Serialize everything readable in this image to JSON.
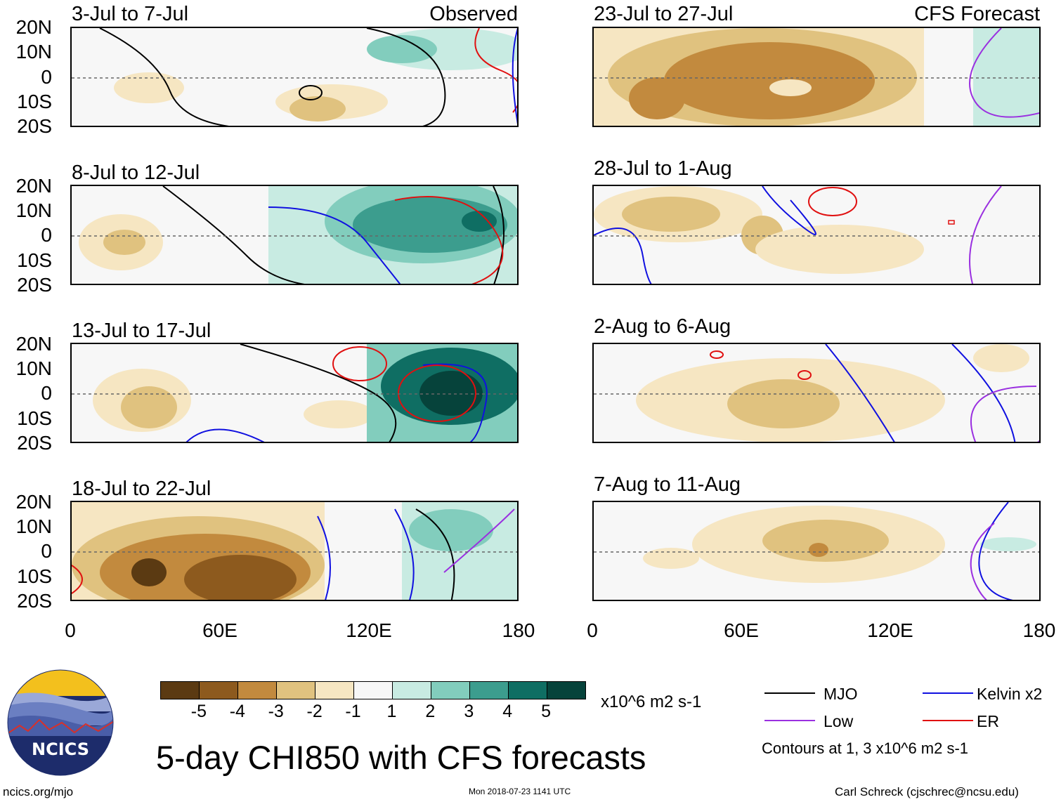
{
  "chart_data": {
    "type": "heatmap",
    "title": "5-day CHI850 with CFS forecasts",
    "colorbar": {
      "ticks": [
        "-5",
        "-4",
        "-3",
        "-2",
        "-1",
        "1",
        "2",
        "3",
        "4",
        "5"
      ],
      "colors": [
        "#5b3a12",
        "#8d5a1e",
        "#c28a3e",
        "#e0c27f",
        "#f6e6c2",
        "#f7f7f7",
        "#c8ebe2",
        "#82cdbd",
        "#3c9d8e",
        "#0f6e63",
        "#06433b"
      ],
      "units": "x10^6 m2 s-1"
    },
    "columns": [
      {
        "label": "Observed",
        "panels": [
          {
            "date_range": "3-Jul to 7-Jul",
            "lat_labels": [
              "20N",
              "10N",
              "0",
              "10S",
              "20S"
            ]
          },
          {
            "date_range": "8-Jul to 12-Jul",
            "lat_labels": [
              "20N",
              "10N",
              "0",
              "10S",
              "20S"
            ]
          },
          {
            "date_range": "13-Jul to 17-Jul",
            "lat_labels": [
              "20N",
              "10N",
              "0",
              "10S",
              "20S"
            ]
          },
          {
            "date_range": "18-Jul to 22-Jul",
            "lat_labels": [
              "20N",
              "10N",
              "0",
              "10S",
              "20S"
            ]
          }
        ],
        "lon_labels": [
          "0",
          "60E",
          "120E",
          "180"
        ]
      },
      {
        "label": "CFS Forecast",
        "panels": [
          {
            "date_range": "23-Jul to 27-Jul"
          },
          {
            "date_range": "28-Jul to 1-Aug"
          },
          {
            "date_range": "2-Aug to 6-Aug"
          },
          {
            "date_range": "7-Aug to 11-Aug"
          }
        ],
        "lon_labels": [
          "0",
          "60E",
          "120E",
          "180"
        ]
      }
    ],
    "legend": [
      {
        "name": "MJO",
        "color": "#000000"
      },
      {
        "name": "Kelvin x2",
        "color": "#1010e0"
      },
      {
        "name": "Low",
        "color": "#9a30e0"
      },
      {
        "name": "ER",
        "color": "#e01010"
      }
    ],
    "contour_note": "Contours at 1, 3 x10^6 m2 s-1"
  },
  "logo": {
    "text": "NCICS"
  },
  "footer": {
    "url": "ncics.org/mjo",
    "timestamp": "Mon 2018-07-23 1141 UTC",
    "author": "Carl Schreck (cjschrec@ncsu.edu)"
  }
}
